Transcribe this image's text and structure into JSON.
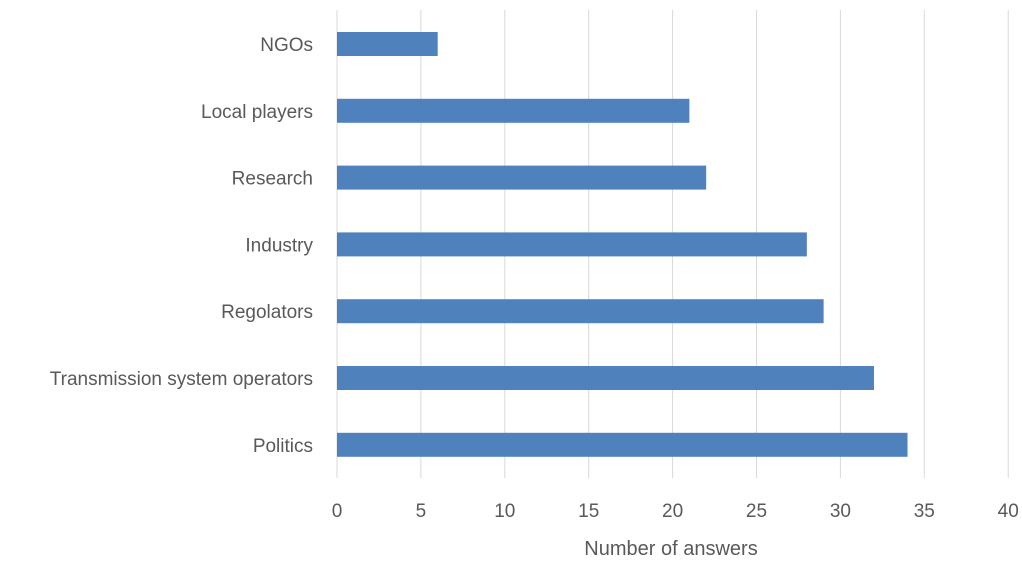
{
  "chart_data": {
    "type": "bar",
    "orientation": "horizontal",
    "categories": [
      "NGOs",
      "Local players",
      "Research",
      "Industry",
      "Regolators",
      "Transmission system operators",
      "Politics"
    ],
    "values": [
      6,
      21,
      22,
      28,
      29,
      32,
      34
    ],
    "xlabel": "Number of answers",
    "ylabel": "",
    "title": "",
    "xlim": [
      0,
      40
    ],
    "xticks": [
      0,
      5,
      10,
      15,
      20,
      25,
      30,
      35,
      40
    ],
    "grid": "vertical",
    "legend": "none",
    "bar_color": "#4f81bd"
  }
}
